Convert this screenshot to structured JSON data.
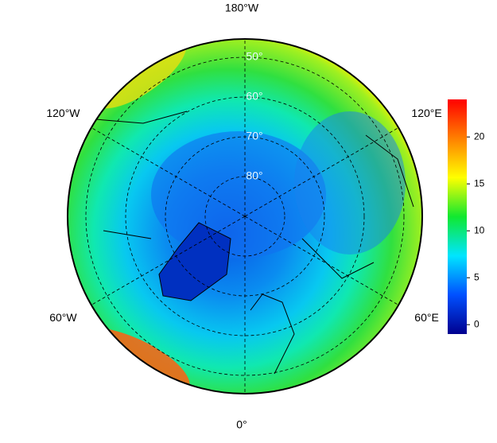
{
  "map": {
    "longitude_labels": [
      {
        "value": -180,
        "label": "180°W"
      },
      {
        "value": 120,
        "label": "120°E"
      },
      {
        "value": 60,
        "label": "60°E"
      },
      {
        "value": 0,
        "label": "0°"
      },
      {
        "value": -60,
        "label": "60°W"
      },
      {
        "value": -120,
        "label": "120°W"
      }
    ],
    "latitude_labels": [
      {
        "value": 50,
        "label": "50°"
      },
      {
        "value": 60,
        "label": "60°"
      },
      {
        "value": 70,
        "label": "70°"
      },
      {
        "value": 80,
        "label": "80°"
      }
    ],
    "colorbar": {
      "lim": [
        -1,
        24
      ],
      "ticks": [
        0,
        5,
        10,
        15,
        20
      ],
      "colormap": [
        "#00008f",
        "#0050ff",
        "#00e5ff",
        "#10e830",
        "#ffff00",
        "#ff8000",
        "#ff0000"
      ]
    }
  }
}
